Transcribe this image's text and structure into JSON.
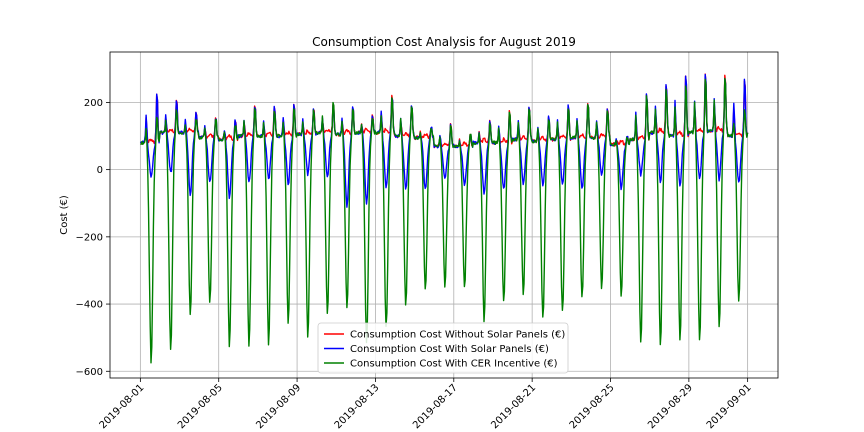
{
  "chart_data": {
    "type": "line",
    "title": "Consumption Cost Analysis for August 2019",
    "xlabel": "",
    "ylabel": "Cost (€)",
    "xlim": [
      "2019-08-01",
      "2019-09-01"
    ],
    "ylim": [
      -620,
      350
    ],
    "x_ticks": [
      "2019-08-01",
      "2019-08-05",
      "2019-08-09",
      "2019-08-13",
      "2019-08-17",
      "2019-08-21",
      "2019-08-25",
      "2019-08-29",
      "2019-09-01"
    ],
    "y_ticks": [
      -600,
      -400,
      -200,
      0,
      200
    ],
    "grid": true,
    "legend_position": "lower center",
    "series": [
      {
        "name": "Consumption Cost Without Solar Panels (€)",
        "color": "#ff0000",
        "daily_peaks": [
          245,
          220,
          180,
          160,
          150,
          200,
          195,
          205,
          190,
          205,
          195,
          165,
          230,
          200,
          130,
          140,
          110,
          150,
          185,
          200,
          165,
          200,
          210,
          190,
          100,
          240,
          265,
          295,
          300,
          295,
          285
        ],
        "daily_lows": [
          80,
          110,
          110,
          95,
          90,
          100,
          100,
          100,
          105,
          110,
          105,
          110,
          110,
          100,
          95,
          70,
          70,
          80,
          80,
          90,
          85,
          90,
          95,
          95,
          75,
          90,
          110,
          100,
          110,
          115,
          100
        ]
      },
      {
        "name": "Consumption Cost With Solar Panels (€)",
        "color": "#0000ff",
        "daily_peaks": [
          245,
          220,
          180,
          160,
          150,
          200,
          195,
          205,
          190,
          205,
          195,
          165,
          230,
          200,
          130,
          140,
          110,
          150,
          185,
          200,
          165,
          200,
          210,
          190,
          100,
          240,
          265,
          295,
          300,
          295,
          285
        ],
        "daily_lows": [
          -25,
          -10,
          -75,
          -40,
          -85,
          -40,
          -30,
          -45,
          -15,
          -20,
          -110,
          -100,
          -55,
          -60,
          -60,
          -25,
          -50,
          -70,
          -60,
          -45,
          -45,
          -40,
          -60,
          -20,
          -55,
          -15,
          -35,
          -50,
          -30,
          -30,
          -40
        ]
      },
      {
        "name": "Consumption Cost With CER Incentive (€)",
        "color": "#008000",
        "daily_peaks": [
          165,
          185,
          155,
          160,
          140,
          190,
          185,
          195,
          185,
          215,
          195,
          160,
          225,
          200,
          125,
          135,
          110,
          145,
          180,
          195,
          160,
          195,
          205,
          185,
          100,
          235,
          255,
          270,
          290,
          295,
          185
        ],
        "daily_lows": [
          -575,
          -540,
          -435,
          -395,
          -525,
          -525,
          -520,
          -455,
          -500,
          -430,
          -415,
          -515,
          -470,
          -400,
          -360,
          -350,
          -355,
          -450,
          -395,
          -375,
          -445,
          -425,
          -385,
          -355,
          -380,
          -520,
          -525,
          -505,
          -510,
          -470,
          -390
        ]
      }
    ]
  }
}
